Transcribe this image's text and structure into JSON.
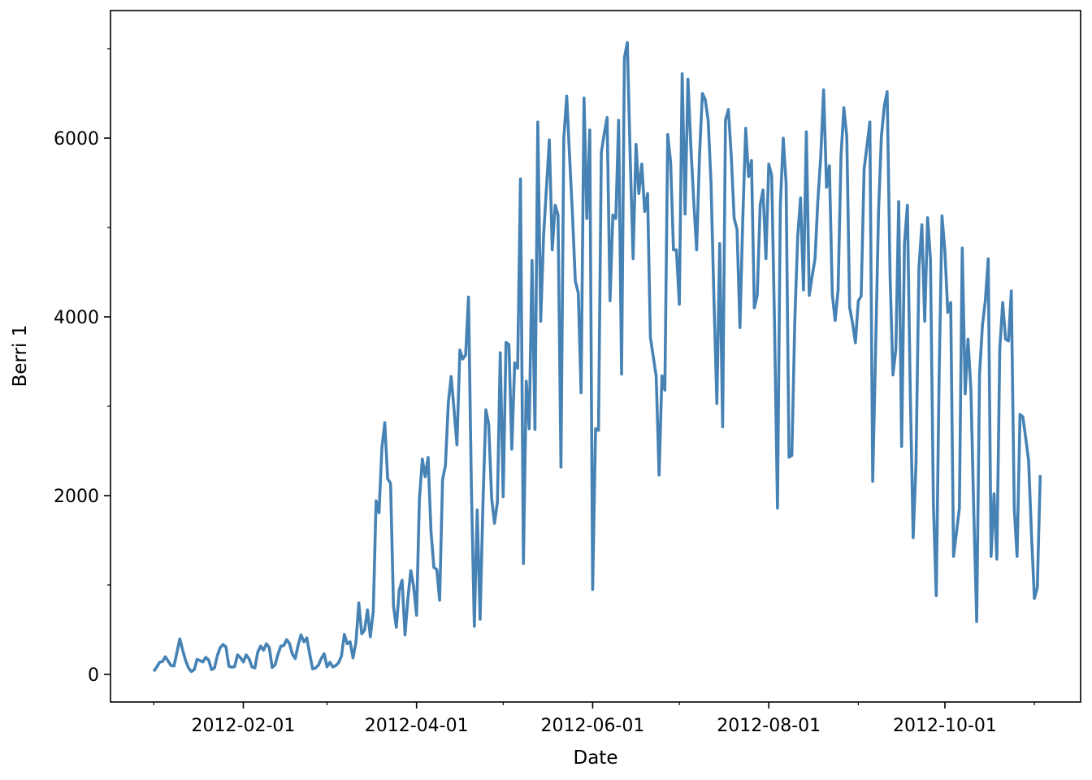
{
  "chart_data": {
    "type": "line",
    "title": "",
    "xlabel": "Date",
    "ylabel": "Berri 1",
    "xlim": [
      "2011-12-17",
      "2012-11-17"
    ],
    "ylim": [
      -309,
      7427
    ],
    "grid": false,
    "legend": "none",
    "line_color": "#4682b4",
    "x_major_ticks": [
      "2012-02-01",
      "2012-04-01",
      "2012-06-01",
      "2012-08-01",
      "2012-10-01"
    ],
    "x_minor_ticks": [
      "2012-01-01",
      "2012-03-01",
      "2012-05-01",
      "2012-07-01",
      "2012-09-01",
      "2012-11-01"
    ],
    "y_major_ticks": [
      0,
      2000,
      4000,
      6000
    ],
    "y_major_tick_labels": [
      "0",
      "2000",
      "4000",
      "6000"
    ],
    "y_minor_ticks": [
      1000,
      3000,
      5000,
      7000
    ],
    "series": [
      {
        "month": "2012-01",
        "daily_values": [
          35,
          83,
          135,
          144,
          197,
          146,
          98,
          95,
          244,
          397,
          273,
          157,
          75,
          32,
          54,
          168,
          155,
          139,
          191,
          161,
          53,
          71,
          210,
          299,
          334,
          306,
          91,
          80,
          87,
          219,
          186
        ]
      },
      {
        "month": "2012-02",
        "daily_values": [
          138,
          217,
          174,
          84,
          72,
          248,
          316,
          271,
          342,
          301,
          77,
          107,
          224,
          317,
          322,
          388,
          345,
          226,
          177,
          328,
          442,
          364,
          407,
          227,
          61,
          71,
          104,
          178,
          231
        ]
      },
      {
        "month": "2012-03",
        "daily_values": [
          85,
          135,
          84,
          98,
          129,
          207,
          447,
          343,
          365,
          185,
          361,
          798,
          454,
          495,
          722,
          421,
          705,
          1943,
          1807,
          2531,
          2816,
          2189,
          2137,
          765,
          527,
          942,
          1054,
          441,
          845,
          1161,
          985
        ]
      },
      {
        "month": "2012-04",
        "daily_values": [
          662,
          1959,
          2409,
          2212,
          2427,
          1609,
          1197,
          1174,
          830,
          2179,
          2335,
          3041,
          3333,
          2955,
          2567,
          3629,
          3528,
          3575,
          4222,
          2084,
          538,
          1840,
          617,
          1912,
          2961,
          2798,
          1968,
          1690,
          1928,
          3598
        ]
      },
      {
        "month": "2012-05",
        "daily_values": [
          1986,
          3713,
          3689,
          2520,
          3486,
          3425,
          5543,
          1241,
          3281,
          2749,
          4631,
          2740,
          6180,
          3950,
          4900,
          5450,
          5980,
          4750,
          5250,
          5140,
          2320,
          6000,
          6470,
          5800,
          5140,
          4400,
          4270,
          3150,
          6450,
          5100,
          6090
        ]
      },
      {
        "month": "2012-06",
        "daily_values": [
          950,
          2750,
          2730,
          5840,
          6050,
          6230,
          4180,
          5140,
          5100,
          6200,
          3360,
          6900,
          7070,
          5800,
          4650,
          5930,
          5380,
          5710,
          5180,
          5380,
          3770,
          3550,
          3340,
          2230,
          3340,
          3180,
          6040,
          5730,
          4750,
          4750
        ]
      },
      {
        "month": "2012-07",
        "daily_values": [
          4140,
          6720,
          5150,
          6660,
          5900,
          5300,
          4750,
          5800,
          6500,
          6430,
          6200,
          5500,
          4200,
          3030,
          4820,
          2770,
          6200,
          6320,
          5800,
          5100,
          4980,
          3880,
          5100,
          6110,
          5570,
          5750,
          4100,
          4240,
          5250,
          5420,
          4650
        ]
      },
      {
        "month": "2012-08",
        "daily_values": [
          5710,
          5580,
          3900,
          1860,
          5250,
          6000,
          5500,
          2430,
          2450,
          3950,
          4900,
          5330,
          4300,
          6070,
          4240,
          4450,
          4650,
          5300,
          5800,
          6540,
          5450,
          5690,
          4250,
          3960,
          4300,
          5800,
          6340,
          6020,
          4110,
          3930,
          3710
        ]
      },
      {
        "month": "2012-09",
        "daily_values": [
          4180,
          4230,
          5650,
          5910,
          6180,
          2160,
          3640,
          5180,
          6020,
          6360,
          6520,
          4450,
          3350,
          3640,
          5290,
          2550,
          4820,
          5250,
          3180,
          1530,
          2360,
          4550,
          5030,
          3950,
          5110,
          4640,
          1910,
          880,
          3360,
          5130
        ]
      },
      {
        "month": "2012-10",
        "daily_values": [
          4730,
          4050,
          4160,
          1320,
          1590,
          1860,
          4770,
          3140,
          3750,
          3180,
          1820,
          590,
          3360,
          3910,
          4180,
          4650,
          1320,
          2020,
          1290,
          3640,
          4160,
          3750,
          3730,
          4290,
          1860,
          1320,
          2910,
          2880,
          2640,
          2390,
          1550
        ]
      },
      {
        "month": "2012-11",
        "daily_values": [
          850,
          970,
          2230
        ]
      }
    ]
  }
}
